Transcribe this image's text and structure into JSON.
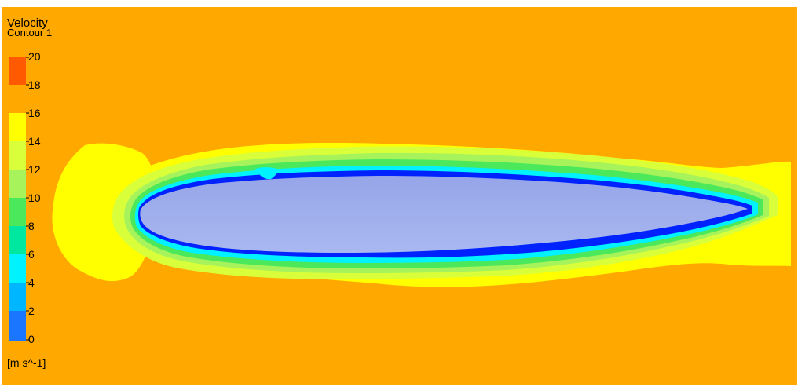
{
  "legend": {
    "title": "Velocity",
    "subtitle": "Contour 1",
    "unit": "[m s^-1]",
    "ticks": [
      "20",
      "18",
      "16",
      "14",
      "12",
      "10",
      "8",
      "6",
      "4",
      "2",
      "0"
    ],
    "band_colors": [
      "#ff5a00",
      "#ffa800",
      "#ffff00",
      "#d8ff3a",
      "#a6f35b",
      "#4ce85c",
      "#00e7a0",
      "#00f2ff",
      "#00b6ff",
      "#1a75ff",
      "#0022ff"
    ]
  },
  "field_colors": {
    "freestream": "#ffa800",
    "wake": "#ffff00",
    "boundary_layer_mid": "#a6f35b",
    "boundary_layer_inner": "#00f2ff",
    "wall": "#0022ff",
    "airfoil": "#9aa8e8"
  }
}
